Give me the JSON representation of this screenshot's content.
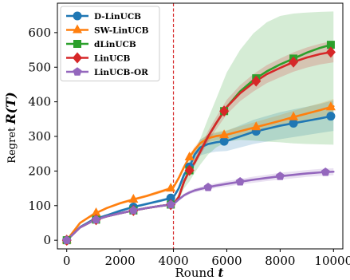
{
  "chart_data": {
    "type": "line",
    "xlabel_prefix": "Round ",
    "xlabel_var": "t",
    "ylabel_prefix": "Regret ",
    "ylabel_var": "R(T)",
    "xlim": [
      -350,
      10350
    ],
    "ylim": [
      -25,
      685
    ],
    "xticks": [
      0,
      2000,
      4000,
      6000,
      8000,
      10000
    ],
    "yticks": [
      0,
      100,
      200,
      300,
      400,
      500,
      600
    ],
    "grid": false,
    "legend_position": "top-left",
    "vline": {
      "x": 4000,
      "color": "#d62728",
      "style": "dashed"
    },
    "series": [
      {
        "name": "D-LinUCB",
        "color": "#1f77b4",
        "marker": "circle",
        "x": [
          0,
          500,
          1000,
          1500,
          2000,
          2500,
          3000,
          3500,
          3900,
          4000,
          4200,
          4400,
          4600,
          4800,
          5000,
          5300,
          5600,
          6000,
          6500,
          7000,
          7500,
          8000,
          8500,
          9000,
          9500,
          10000
        ],
        "y": [
          0,
          38,
          60,
          72,
          85,
          96,
          105,
          114,
          122,
          124,
          150,
          190,
          212,
          248,
          268,
          278,
          283,
          287,
          300,
          313,
          322,
          331,
          338,
          345,
          352,
          360
        ],
        "band_lower": [
          0,
          36,
          57,
          69,
          81,
          92,
          101,
          110,
          118,
          120,
          143,
          182,
          203,
          232,
          245,
          252,
          256,
          258,
          268,
          278,
          285,
          292,
          298,
          304,
          310,
          316
        ],
        "band_upper": [
          0,
          40,
          63,
          75,
          89,
          100,
          109,
          118,
          126,
          128,
          157,
          198,
          221,
          264,
          291,
          304,
          310,
          316,
          332,
          348,
          359,
          370,
          378,
          386,
          394,
          404
        ],
        "markers_x": [
          0,
          1100,
          2500,
          3900,
          4600,
          5900,
          7100,
          8500,
          9900
        ]
      },
      {
        "name": "SW-LinUCB",
        "color": "#ff7f0e",
        "marker": "triangle",
        "x": [
          0,
          500,
          1000,
          1500,
          2000,
          2500,
          3000,
          3500,
          3900,
          4000,
          4200,
          4400,
          4600,
          4800,
          5000,
          5300,
          5600,
          6000,
          6500,
          7000,
          7500,
          8000,
          8500,
          9000,
          9500,
          10000
        ],
        "y": [
          0,
          50,
          75,
          93,
          107,
          118,
          128,
          140,
          150,
          153,
          180,
          212,
          240,
          262,
          280,
          295,
          301,
          305,
          315,
          325,
          335,
          345,
          356,
          366,
          376,
          387
        ],
        "band_lower": [
          0,
          48,
          72,
          90,
          103,
          114,
          124,
          135,
          145,
          148,
          174,
          205,
          232,
          253,
          270,
          284,
          289,
          292,
          301,
          310,
          319,
          328,
          338,
          347,
          356,
          366
        ],
        "band_upper": [
          0,
          52,
          78,
          96,
          111,
          122,
          132,
          145,
          155,
          158,
          186,
          219,
          248,
          271,
          290,
          306,
          313,
          318,
          329,
          340,
          351,
          362,
          374,
          385,
          396,
          408
        ],
        "markers_x": [
          0,
          1100,
          2500,
          3900,
          4600,
          5900,
          7100,
          8500,
          9900
        ]
      },
      {
        "name": "dLinUCB",
        "color": "#2ca02c",
        "marker": "square",
        "x": [
          0,
          500,
          1000,
          1500,
          2000,
          2500,
          3000,
          3500,
          3900,
          4000,
          4200,
          4400,
          4600,
          4800,
          5000,
          5300,
          5600,
          6000,
          6500,
          7000,
          7500,
          8000,
          8500,
          9000,
          9500,
          10000
        ],
        "y": [
          0,
          37,
          57,
          69,
          78,
          86,
          93,
          99,
          103,
          104,
          125,
          170,
          202,
          225,
          255,
          300,
          338,
          385,
          430,
          463,
          488,
          508,
          525,
          542,
          556,
          567
        ],
        "band_lower": [
          0,
          35,
          54,
          66,
          75,
          83,
          90,
          96,
          100,
          101,
          115,
          150,
          170,
          195,
          218,
          248,
          268,
          285,
          290,
          288,
          285,
          283,
          280,
          278,
          277,
          276
        ],
        "band_upper": [
          0,
          39,
          60,
          72,
          81,
          89,
          96,
          102,
          106,
          107,
          135,
          190,
          234,
          255,
          292,
          352,
          408,
          485,
          550,
          598,
          630,
          648,
          655,
          658,
          660,
          661
        ],
        "markers_x": [
          0,
          1100,
          2500,
          3900,
          4600,
          5900,
          7100,
          8500,
          9900
        ]
      },
      {
        "name": "LinUCB",
        "color": "#d62728",
        "marker": "diamond",
        "x": [
          0,
          500,
          1000,
          1500,
          2000,
          2500,
          3000,
          3500,
          3900,
          4000,
          4200,
          4400,
          4600,
          4800,
          5000,
          5300,
          5600,
          6000,
          6500,
          7000,
          7500,
          8000,
          8500,
          9000,
          9500,
          10000
        ],
        "y": [
          0,
          37,
          57,
          69,
          78,
          86,
          93,
          99,
          103,
          104,
          125,
          170,
          202,
          225,
          255,
          300,
          338,
          385,
          425,
          455,
          480,
          498,
          515,
          528,
          538,
          545
        ],
        "band_lower": [
          0,
          35,
          54,
          66,
          75,
          83,
          90,
          96,
          100,
          101,
          120,
          163,
          194,
          215,
          243,
          284,
          320,
          364,
          402,
          430,
          454,
          471,
          487,
          499,
          508,
          514
        ],
        "band_upper": [
          0,
          39,
          60,
          72,
          81,
          89,
          96,
          102,
          106,
          107,
          130,
          177,
          210,
          235,
          267,
          316,
          356,
          406,
          448,
          480,
          506,
          525,
          543,
          557,
          568,
          576
        ],
        "markers_x": [
          0,
          1100,
          2500,
          3900,
          4600,
          5900,
          7100,
          8500,
          9900
        ]
      },
      {
        "name": "LinUCB-OR",
        "color": "#9467bd",
        "marker": "pentagon",
        "x": [
          0,
          500,
          1000,
          1500,
          2000,
          2500,
          3000,
          3500,
          3900,
          4000,
          4200,
          4400,
          4600,
          4800,
          5000,
          5300,
          5600,
          6000,
          6500,
          7000,
          7500,
          8000,
          8500,
          9000,
          9500,
          10000
        ],
        "y": [
          0,
          37,
          57,
          69,
          78,
          86,
          93,
          99,
          103,
          104,
          118,
          130,
          138,
          144,
          148,
          153,
          158,
          163,
          169,
          175,
          180,
          185,
          189,
          193,
          196,
          198
        ],
        "band_lower": [
          0,
          35,
          54,
          66,
          75,
          83,
          90,
          96,
          100,
          101,
          114,
          125,
          133,
          138,
          142,
          146,
          151,
          155,
          161,
          166,
          171,
          175,
          179,
          183,
          186,
          188
        ],
        "band_upper": [
          0,
          39,
          60,
          72,
          81,
          89,
          96,
          102,
          106,
          107,
          122,
          135,
          143,
          150,
          154,
          160,
          165,
          171,
          177,
          184,
          189,
          195,
          199,
          203,
          206,
          208
        ],
        "markers_x": [
          0,
          1100,
          2500,
          3900,
          5300,
          6500,
          8000,
          9700
        ]
      }
    ]
  }
}
